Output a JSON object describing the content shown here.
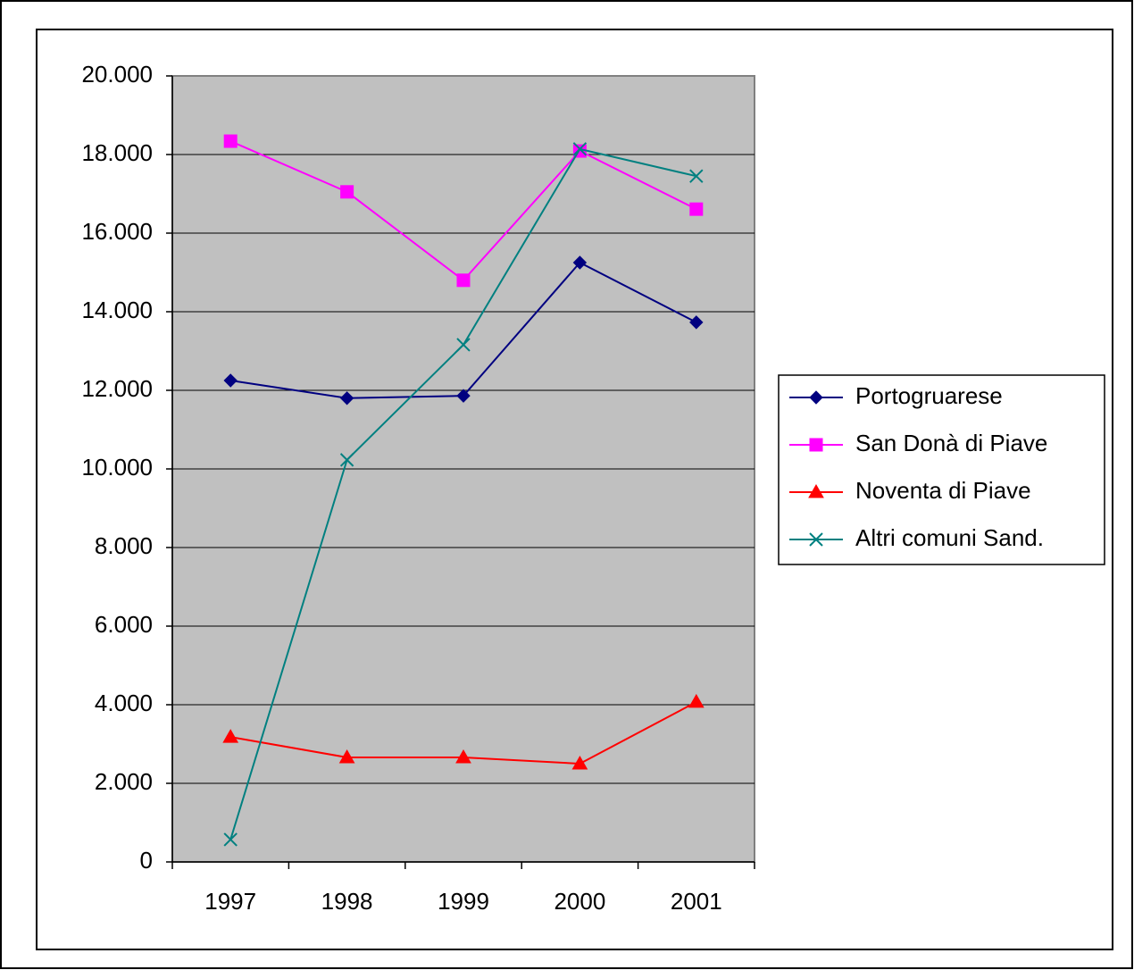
{
  "chart_data": {
    "type": "line",
    "categories": [
      "1997",
      "1998",
      "1999",
      "2000",
      "2001"
    ],
    "series": [
      {
        "name": "Portogruarese",
        "color": "#000080",
        "marker": "diamond",
        "values": [
          12250,
          11800,
          11860,
          15250,
          13730
        ]
      },
      {
        "name": "San Donà di Piave",
        "color": "#ff00ff",
        "marker": "square",
        "values": [
          18340,
          17050,
          14800,
          18090,
          16610
        ]
      },
      {
        "name": "Noventa di Piave",
        "color": "#ff0000",
        "marker": "triangle",
        "values": [
          3180,
          2660,
          2660,
          2500,
          4070
        ]
      },
      {
        "name": "Altri comuni Sand.",
        "color": "#008080",
        "marker": "x",
        "values": [
          570,
          10230,
          13160,
          18140,
          17450
        ]
      }
    ],
    "ylim": [
      0,
      20000
    ],
    "yticks": [
      0,
      {
        "value": 2000,
        "label": "2.000"
      },
      {
        "value": 4000,
        "label": "4.000"
      },
      {
        "value": 6000,
        "label": "6.000"
      },
      {
        "value": 8000,
        "label": "8.000"
      },
      {
        "value": 10000,
        "label": "10.000"
      },
      {
        "value": 12000,
        "label": "12.000"
      },
      {
        "value": 14000,
        "label": "14.000"
      },
      {
        "value": 16000,
        "label": "16.000"
      },
      {
        "value": 18000,
        "label": "18.000"
      },
      {
        "value": 20000,
        "label": "20.000"
      }
    ],
    "grid": true,
    "plot_background": "#c0c0c0",
    "legend_position": "right"
  }
}
